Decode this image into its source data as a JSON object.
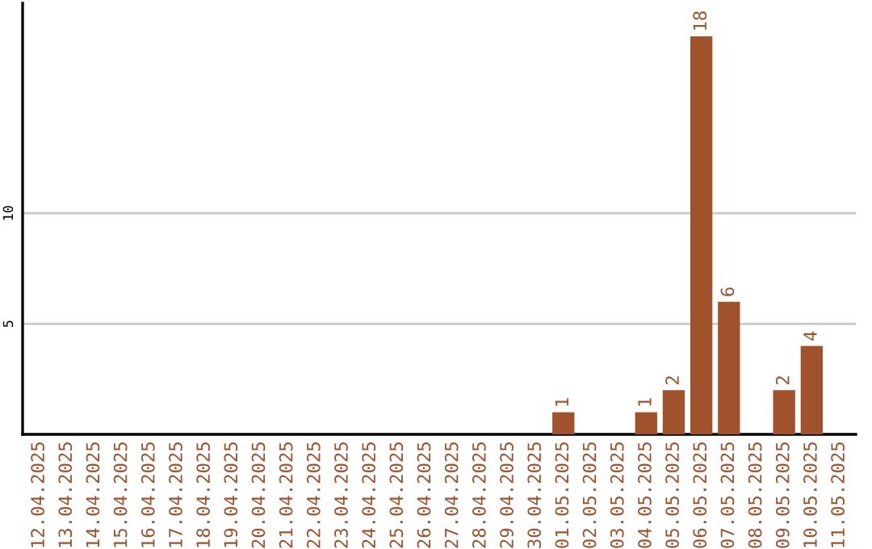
{
  "chart_data": {
    "type": "bar",
    "categories": [
      "12.04.2025",
      "13.04.2025",
      "14.04.2025",
      "15.04.2025",
      "16.04.2025",
      "17.04.2025",
      "18.04.2025",
      "19.04.2025",
      "20.04.2025",
      "21.04.2025",
      "22.04.2025",
      "23.04.2025",
      "24.04.2025",
      "25.04.2025",
      "26.04.2025",
      "27.04.2025",
      "28.04.2025",
      "29.04.2025",
      "30.04.2025",
      "01.05.2025",
      "02.05.2025",
      "03.05.2025",
      "04.05.2025",
      "05.05.2025",
      "06.05.2025",
      "07.05.2025",
      "08.05.2025",
      "09.05.2025",
      "10.05.2025",
      "11.05.2025"
    ],
    "values": [
      0,
      0,
      0,
      0,
      0,
      0,
      0,
      0,
      0,
      0,
      0,
      0,
      0,
      0,
      0,
      0,
      0,
      0,
      0,
      1,
      0,
      0,
      1,
      2,
      18,
      6,
      0,
      2,
      4,
      0
    ],
    "value_labels": [
      null,
      null,
      null,
      null,
      null,
      null,
      null,
      null,
      null,
      null,
      null,
      null,
      null,
      null,
      null,
      null,
      null,
      null,
      null,
      "1",
      null,
      null,
      "1",
      "2",
      "18",
      "6",
      null,
      "2",
      "4",
      null
    ],
    "color": "#a0522d",
    "ylim": [
      0,
      19.5
    ],
    "yticks": [
      5,
      10
    ],
    "grid": "y",
    "legend": false
  }
}
